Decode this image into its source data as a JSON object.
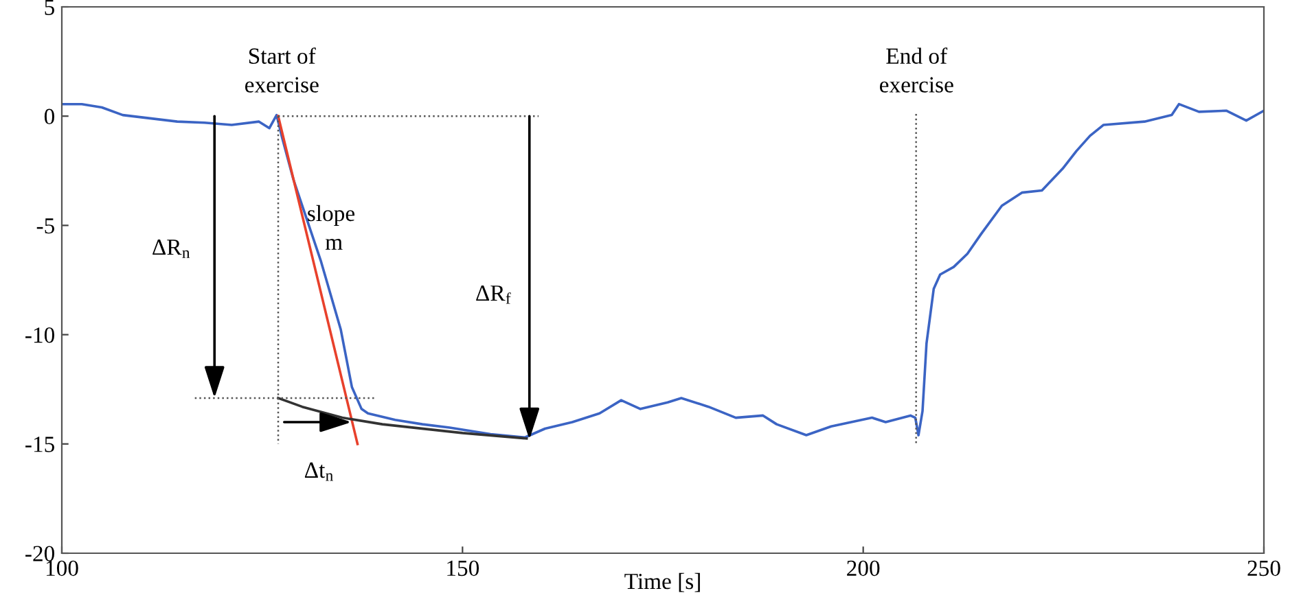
{
  "chart_data": {
    "type": "line",
    "xlabel": "Time [s]",
    "xlim": [
      100,
      250
    ],
    "xticks": [
      100,
      150,
      200,
      250
    ],
    "ylim": [
      -20,
      5
    ],
    "yticks": [
      {
        "value": -20,
        "label": "-20"
      },
      {
        "value": -15,
        "label": "-15"
      },
      {
        "value": -10,
        "label": "-10"
      },
      {
        "value": -5,
        "label": "-5"
      },
      0,
      5
    ],
    "grid": false,
    "legend": false,
    "marker": "none",
    "line_style": "solid",
    "series": [
      {
        "color": "#3b64c4",
        "x": [
          100,
          102.5,
          105,
          107.6,
          111,
          114.4,
          117.8,
          121.2,
          124.6,
          125.9,
          126.8,
          127.5,
          128.9,
          132.3,
          134.8,
          136.2,
          137.4,
          138.2,
          141.6,
          145,
          148.4,
          153.5,
          157.8,
          160.3,
          163.7,
          167.1,
          169.8,
          172.2,
          175.6,
          177.3,
          180.7,
          184.1,
          187.5,
          189.2,
          192.9,
          196,
          201.1,
          202.8,
          205.9,
          206.5,
          206.9,
          207.4,
          207.9,
          208.8,
          209.6,
          211.3,
          213,
          214.7,
          217.3,
          219.8,
          222.3,
          224.9,
          226.6,
          228.3,
          230,
          235.1,
          238.5,
          239.4,
          241.9,
          245.3,
          247.8,
          250
        ],
        "values": [
          0.55,
          0.55,
          0.4,
          0.05,
          -0.1,
          -0.25,
          -0.3,
          -0.4,
          -0.25,
          -0.55,
          0.05,
          -1,
          -2.9,
          -6.6,
          -9.75,
          -12.4,
          -13.4,
          -13.6,
          -13.9,
          -14.1,
          -14.25,
          -14.55,
          -14.7,
          -14.3,
          -14,
          -13.6,
          -13,
          -13.4,
          -13.1,
          -12.9,
          -13.3,
          -13.8,
          -13.7,
          -14.1,
          -14.6,
          -14.2,
          -13.8,
          -14,
          -13.7,
          -13.8,
          -14.6,
          -13.5,
          -10.4,
          -7.9,
          -7.25,
          -6.9,
          -6.3,
          -5.4,
          -4.1,
          -3.5,
          -3.4,
          -2.4,
          -1.6,
          -0.9,
          -0.4,
          -0.25,
          0.05,
          0.55,
          0.2,
          0.25,
          -0.2,
          0.25
        ]
      },
      {
        "color": "#e8412c",
        "x": [
          127,
          136.9
        ],
        "values": [
          0,
          -15
        ]
      },
      {
        "color": "#333333",
        "x": [
          127,
          130,
          135,
          140,
          150,
          158
        ],
        "values": [
          -12.9,
          -13.3,
          -13.8,
          -14.1,
          -14.5,
          -14.75
        ]
      },
      {
        "color": "#555555",
        "line_style": "dotted",
        "x": [
          127,
          159.5
        ],
        "values": [
          0,
          0
        ]
      },
      {
        "color": "#555555",
        "line_style": "dotted",
        "x": [
          116.6,
          139
        ],
        "values": [
          -12.9,
          -12.9
        ]
      },
      {
        "color": "#555555",
        "line_style": "dotted",
        "x": [
          127,
          127
        ],
        "values": [
          0,
          -15
        ]
      },
      {
        "color": "#555555",
        "line_style": "dotted",
        "x": [
          206.6,
          206.6
        ],
        "values": [
          0.1,
          -15
        ]
      }
    ],
    "annotations": [
      "Start of\nexercise",
      "End of\nexercise",
      "slope\n m",
      "ΔR$_{n}$",
      "ΔR$_{f}$",
      "Δt$_{n}$"
    ]
  }
}
